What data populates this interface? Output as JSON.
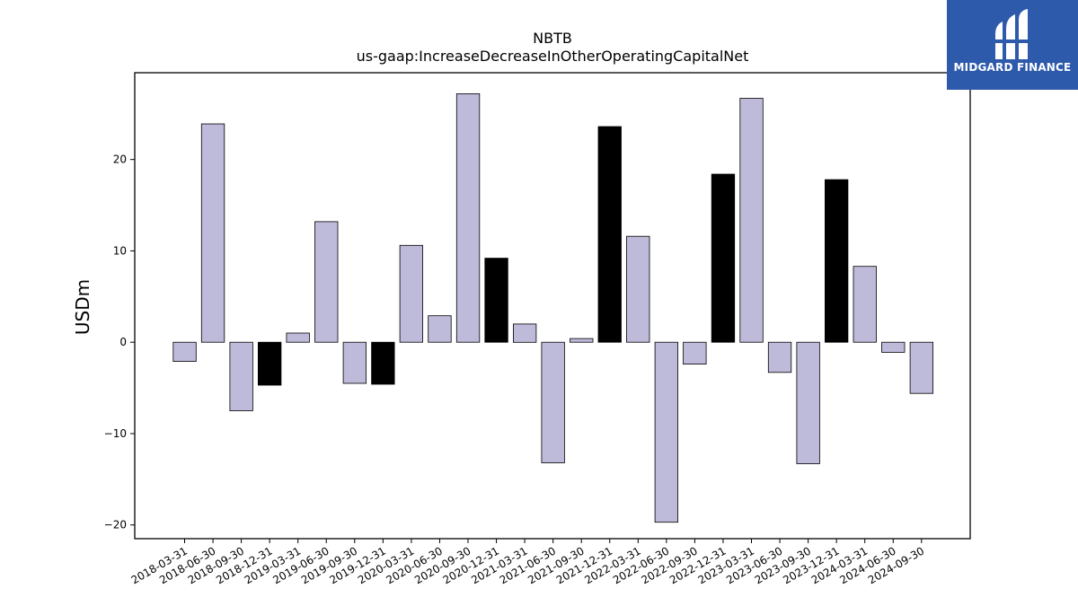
{
  "chart_data": {
    "type": "bar",
    "title": "NBTB",
    "subtitle": "us-gaap:IncreaseDecreaseInOtherOperatingCapitalNet",
    "xlabel": "",
    "ylabel": "USDm",
    "ylim": [
      -21.5,
      29.5
    ],
    "yticks": [
      -20,
      -10,
      0,
      10,
      20
    ],
    "grid": false,
    "categories": [
      "2018-03-31",
      "2018-06-30",
      "2018-09-30",
      "2018-12-31",
      "2019-03-31",
      "2019-06-30",
      "2019-09-30",
      "2019-12-31",
      "2020-03-31",
      "2020-06-30",
      "2020-09-30",
      "2020-12-31",
      "2021-03-31",
      "2021-06-30",
      "2021-09-30",
      "2021-12-31",
      "2022-03-31",
      "2022-06-30",
      "2022-09-30",
      "2022-12-31",
      "2023-03-31",
      "2023-06-30",
      "2023-09-30",
      "2023-12-31",
      "2024-03-31",
      "2024-06-30",
      "2024-09-30"
    ],
    "values": [
      -2.1,
      23.9,
      -7.5,
      -4.7,
      1.0,
      13.2,
      -4.5,
      -4.6,
      10.6,
      2.9,
      27.2,
      9.2,
      2.0,
      -13.2,
      0.4,
      23.6,
      11.6,
      -19.7,
      -2.4,
      18.4,
      26.7,
      -3.3,
      -13.3,
      17.8,
      8.3,
      -1.1,
      -5.6
    ],
    "highlight_categories": [
      "2018-12-31",
      "2019-12-31",
      "2020-12-31",
      "2021-12-31",
      "2022-12-31",
      "2023-12-31"
    ],
    "colors": {
      "default": "#bebad9",
      "highlight": "#000000",
      "edge": "#000000"
    }
  },
  "logo": {
    "text": "MIDGARD FINANCE",
    "background": "#2e5aac"
  }
}
